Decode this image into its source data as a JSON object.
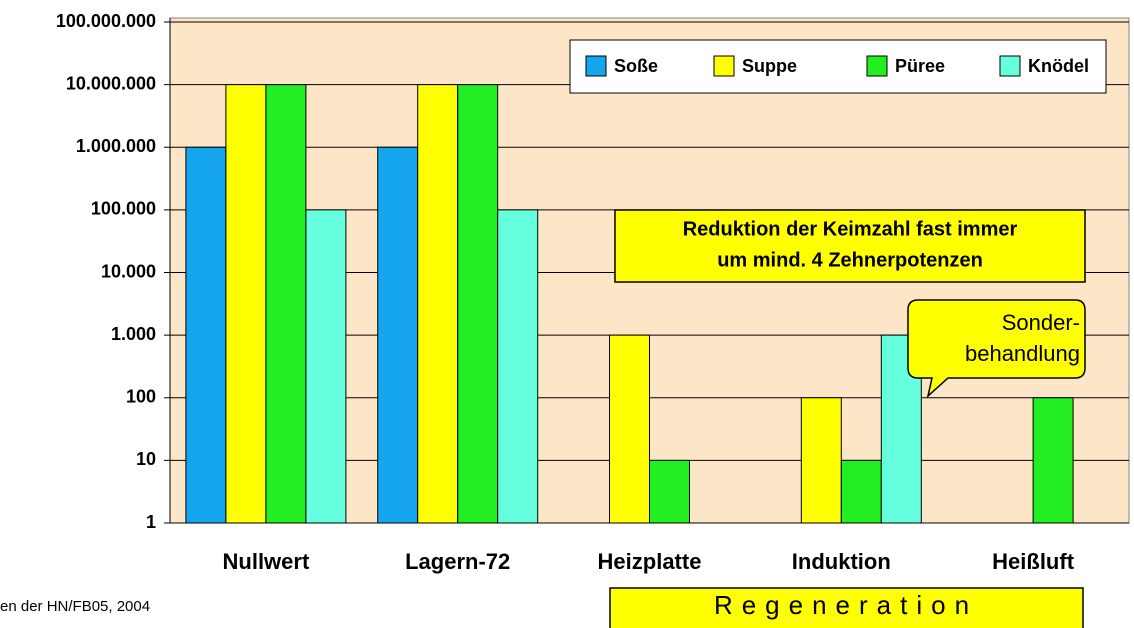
{
  "chart_data": {
    "type": "bar",
    "yscale": "log",
    "grid": true,
    "legend": "upper right",
    "categories": [
      "Nullwert",
      "Lagern-72",
      "Heizplatte",
      "Induktion",
      "Heißluft"
    ],
    "series": [
      {
        "name": "Soße",
        "color": "#14a5ee",
        "values": [
          1000000,
          1000000,
          null,
          null,
          null
        ]
      },
      {
        "name": "Suppe",
        "color": "#ffff00",
        "values": [
          10000000,
          10000000,
          1000,
          100,
          null
        ]
      },
      {
        "name": "Püree",
        "color": "#22ee22",
        "values": [
          10000000,
          10000000,
          10,
          10,
          100
        ]
      },
      {
        "name": "Knödel",
        "color": "#66ffdd",
        "values": [
          100000,
          100000,
          null,
          1000,
          null
        ]
      }
    ],
    "ylim": [
      1,
      100000000
    ],
    "yticks": [
      1,
      10,
      100,
      {
        "value": 1000,
        "label": "1.000"
      },
      {
        "value": 10000,
        "label": "10.000"
      },
      {
        "value": 100000,
        "label": "100.000"
      },
      {
        "value": 1000000,
        "label": "1.000.000"
      },
      {
        "value": 10000000,
        "label": "10.000.000"
      },
      {
        "value": 100000000,
        "label": "100.000.000"
      }
    ],
    "annotation": [
      "Reduktion der Keimzahl fast immer",
      "um mind. 4 Zehnerpotenzen"
    ],
    "callout": [
      "Sonder-",
      "behandlung"
    ],
    "group_label": "Regeneration",
    "source": "en der HN/FB05, 2004"
  }
}
